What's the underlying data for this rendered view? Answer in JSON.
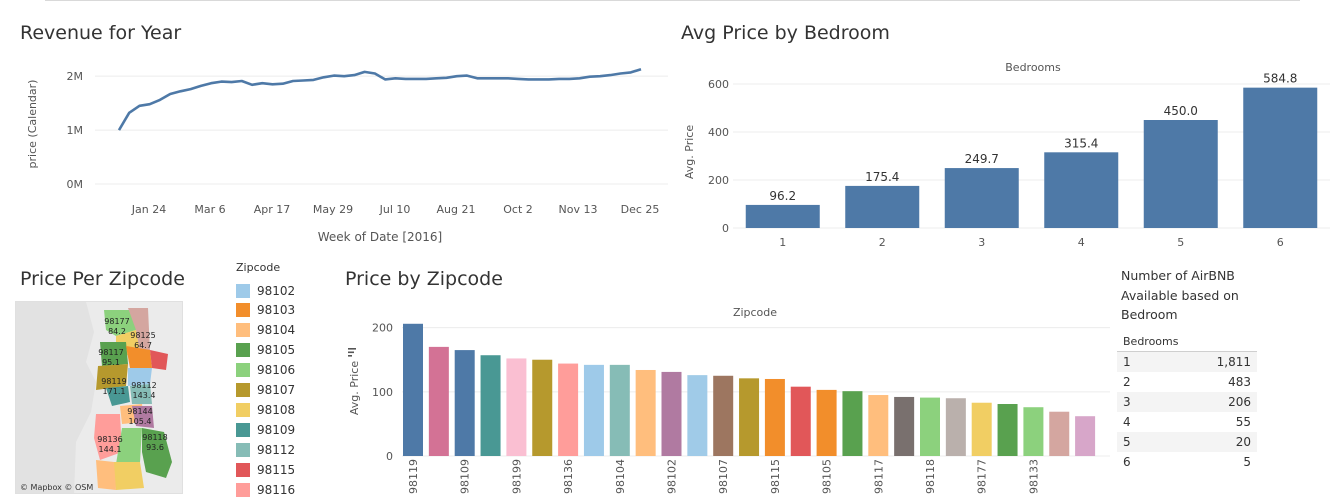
{
  "revenue": {
    "title": "Revenue for Year",
    "chart_data": {
      "type": "line",
      "title": "Revenue for Year",
      "xlabel": "Week of Date [2016]",
      "ylabel": "price (Calendar)",
      "yticks": [
        "0M",
        "1M",
        "2M"
      ],
      "ylim": [
        0,
        2300000
      ],
      "xticks": [
        "Jan 24",
        "Mar 6",
        "Apr 17",
        "May 29",
        "Jul 10",
        "Aug 21",
        "Oct 2",
        "Nov 13",
        "Dec 25"
      ],
      "series": [
        {
          "values": [
            1000000,
            1320000,
            1450000,
            1480000,
            1560000,
            1670000,
            1720000,
            1760000,
            1820000,
            1870000,
            1900000,
            1890000,
            1910000,
            1840000,
            1870000,
            1850000,
            1860000,
            1910000,
            1920000,
            1930000,
            1980000,
            2010000,
            2000000,
            2020000,
            2080000,
            2050000,
            1940000,
            1960000,
            1950000,
            1950000,
            1950000,
            1960000,
            1970000,
            2000000,
            2010000,
            1960000,
            1960000,
            1960000,
            1960000,
            1950000,
            1940000,
            1940000,
            1940000,
            1950000,
            1950000,
            1960000,
            1990000,
            2000000,
            2020000,
            2050000,
            2070000,
            2130000
          ]
        }
      ],
      "grid": "horizontal"
    }
  },
  "bedroom": {
    "title": "Avg Price by Bedroom",
    "chart_data": {
      "type": "bar",
      "title": "Avg Price by Bedroom",
      "header": "Bedrooms",
      "ylabel": "Avg. Price",
      "categories": [
        "1",
        "2",
        "3",
        "4",
        "5",
        "6"
      ],
      "values": [
        96.2,
        175.4,
        249.7,
        315.4,
        450.0,
        584.8
      ],
      "labels": [
        "96.2",
        "175.4",
        "249.7",
        "315.4",
        "450.0",
        "584.8"
      ],
      "yticks": [
        "0",
        "200",
        "400",
        "600"
      ],
      "ylim": [
        0,
        650
      ],
      "color": "#4e79a7"
    }
  },
  "map": {
    "title": "Price Per Zipcode",
    "attribution": "© Mapbox  © OSM",
    "labels": [
      {
        "zip": "98177",
        "value": "84.2"
      },
      {
        "zip": "98125",
        "value": "64.7"
      },
      {
        "zip": "98117",
        "value": "95.1"
      },
      {
        "zip": "98119",
        "value": "171.1"
      },
      {
        "zip": "98112",
        "value": "143.4"
      },
      {
        "zip": "98144",
        "value": "105.4"
      },
      {
        "zip": "98136",
        "value": "144.1"
      },
      {
        "zip": "98118",
        "value": "93.6"
      }
    ]
  },
  "legend": {
    "title": "Zipcode",
    "items": [
      {
        "label": "98102",
        "color": "#9ecae9"
      },
      {
        "label": "98103",
        "color": "#f28e2b"
      },
      {
        "label": "98104",
        "color": "#ffbe7d"
      },
      {
        "label": "98105",
        "color": "#59a14f"
      },
      {
        "label": "98106",
        "color": "#8cd17d"
      },
      {
        "label": "98107",
        "color": "#b6992d"
      },
      {
        "label": "98108",
        "color": "#f1ce63"
      },
      {
        "label": "98109",
        "color": "#499894"
      },
      {
        "label": "98112",
        "color": "#86bcb6"
      },
      {
        "label": "98115",
        "color": "#e15759"
      },
      {
        "label": "98116",
        "color": "#ff9d9a"
      }
    ]
  },
  "zipcode": {
    "title": "Price by Zipcode",
    "chart_data": {
      "type": "bar",
      "title": "Price by Zipcode",
      "header": "Zipcode",
      "ylabel": "Avg. Price",
      "yticks": [
        "0",
        "100",
        "200"
      ],
      "ylim": [
        0,
        215
      ],
      "categories": [
        "98119",
        "",
        "98109",
        "",
        "98199",
        "",
        "98136",
        "",
        "98104",
        "",
        "98102",
        "",
        "98107",
        "",
        "98115",
        "",
        "98105",
        "",
        "98117",
        "",
        "98118",
        "",
        "98177",
        "",
        "98133",
        "",
        ""
      ],
      "values": [
        206,
        170,
        165,
        157,
        152,
        150,
        144,
        142,
        142,
        134,
        131,
        126,
        125,
        121,
        120,
        108,
        103,
        101,
        95,
        92,
        91,
        90,
        83,
        81,
        76,
        69,
        62
      ],
      "colors": [
        "#4e79a7",
        "#d37295",
        "#4e79a7",
        "#499894",
        "#fabfd2",
        "#b6992d",
        "#ff9d9a",
        "#9ecae9",
        "#86bcb6",
        "#ffbe7d",
        "#b07aa1",
        "#a0cbe8",
        "#9d7660",
        "#b6992d",
        "#f28e2b",
        "#e15759",
        "#f28e2b",
        "#59a14f",
        "#ffbe7d",
        "#79706e",
        "#8cd17d",
        "#bab0ac",
        "#f1ce63",
        "#59a14f",
        "#8cd17d",
        "#d4a6a0",
        "#d7a6c9"
      ],
      "sort_icon": "sort-descending-icon"
    }
  },
  "availability": {
    "title_lines": [
      "Number of AirBNB",
      "Available based on",
      "Bedroom"
    ],
    "header": "Bedrooms",
    "rows": [
      {
        "bedrooms": "1",
        "count": "1,811"
      },
      {
        "bedrooms": "2",
        "count": "483"
      },
      {
        "bedrooms": "3",
        "count": "206"
      },
      {
        "bedrooms": "4",
        "count": "55"
      },
      {
        "bedrooms": "5",
        "count": "20"
      },
      {
        "bedrooms": "6",
        "count": "5"
      }
    ]
  }
}
